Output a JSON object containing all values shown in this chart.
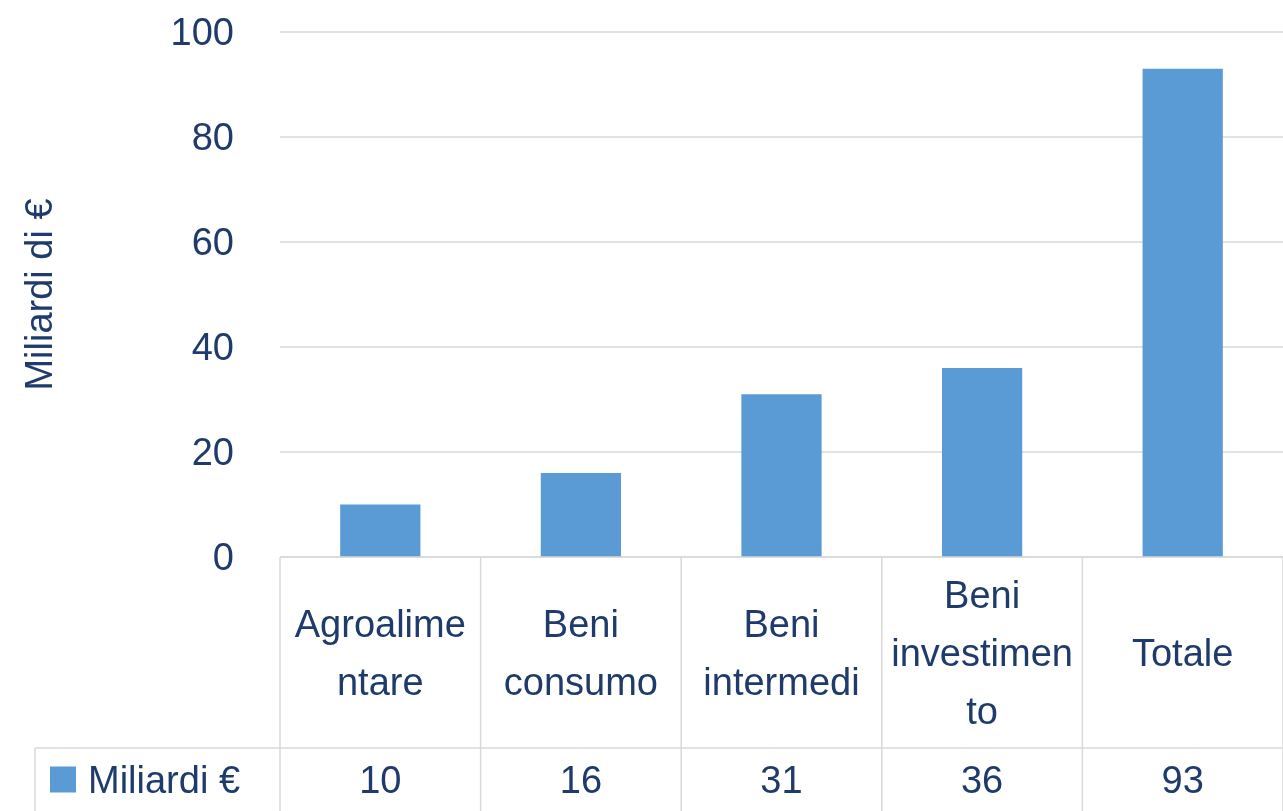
{
  "chart_data": {
    "type": "bar",
    "ylabel": "Miliardi di €",
    "categories": [
      "Agroalimentare",
      "Beni consumo",
      "Beni intermedi",
      "Beni investimento",
      "Totale"
    ],
    "series": [
      {
        "name": "Miliardi €",
        "color": "#5b9bd5",
        "values": [
          10,
          16,
          31,
          36,
          93
        ]
      }
    ],
    "ylim": [
      0,
      100
    ],
    "yticks": [
      0,
      20,
      40,
      60,
      80,
      100
    ],
    "grid": "y",
    "legend": "bottom left",
    "data_labels": true
  }
}
